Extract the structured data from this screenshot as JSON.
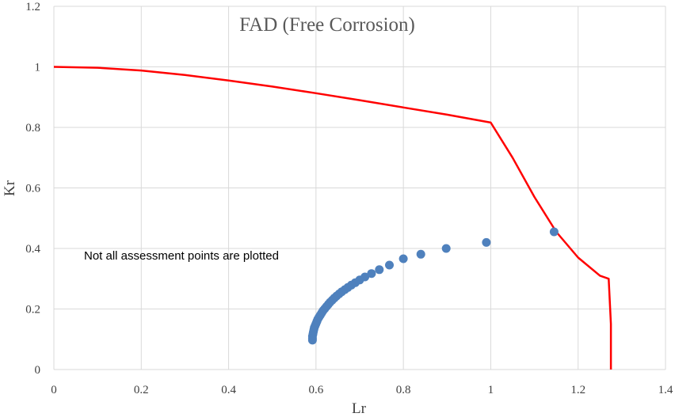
{
  "chart_data": {
    "type": "scatter",
    "title": "FAD (Free Corrosion)",
    "xlabel": "Lr",
    "ylabel": "Kr",
    "xlim": [
      0,
      1.4
    ],
    "ylim": [
      0,
      1.2
    ],
    "x_ticks": [
      0,
      0.2,
      0.4,
      0.6,
      0.8,
      1,
      1.2,
      1.4
    ],
    "x_tick_labels": [
      "0",
      "0.2",
      "0.4",
      "0.6",
      "0.8",
      "1",
      "1.2",
      "1.4"
    ],
    "y_ticks": [
      0,
      0.2,
      0.4,
      0.6,
      0.8,
      1,
      1.2
    ],
    "y_tick_labels": [
      "0",
      "0.2",
      "0.4",
      "0.6",
      "0.8",
      "1",
      "1.2"
    ],
    "grid": true,
    "annotation": "Not all assessment points are plotted",
    "series": [
      {
        "kind": "line",
        "color": "#ff0000",
        "points": [
          [
            0,
            1.0
          ],
          [
            0.1,
            0.997
          ],
          [
            0.2,
            0.988
          ],
          [
            0.3,
            0.973
          ],
          [
            0.4,
            0.955
          ],
          [
            0.5,
            0.935
          ],
          [
            0.6,
            0.913
          ],
          [
            0.7,
            0.89
          ],
          [
            0.8,
            0.866
          ],
          [
            0.9,
            0.842
          ],
          [
            1.0,
            0.816
          ],
          [
            1.05,
            0.7
          ],
          [
            1.1,
            0.57
          ],
          [
            1.15,
            0.455
          ],
          [
            1.2,
            0.37
          ],
          [
            1.25,
            0.31
          ],
          [
            1.27,
            0.3
          ],
          [
            1.275,
            0.15
          ],
          [
            1.275,
            0.0
          ]
        ]
      },
      {
        "kind": "scatter",
        "color": "#4f81bd",
        "points": [
          [
            1.145,
            0.455
          ],
          [
            0.99,
            0.42
          ],
          [
            0.898,
            0.4
          ],
          [
            0.84,
            0.381
          ],
          [
            0.8,
            0.366
          ],
          [
            0.768,
            0.345
          ],
          [
            0.745,
            0.33
          ],
          [
            0.727,
            0.317
          ],
          [
            0.712,
            0.306
          ],
          [
            0.7,
            0.296
          ],
          [
            0.69,
            0.287
          ],
          [
            0.681,
            0.279
          ],
          [
            0.673,
            0.271
          ],
          [
            0.666,
            0.264
          ],
          [
            0.659,
            0.257
          ],
          [
            0.653,
            0.25
          ],
          [
            0.647,
            0.243
          ],
          [
            0.642,
            0.236
          ],
          [
            0.637,
            0.229
          ],
          [
            0.632,
            0.222
          ],
          [
            0.628,
            0.215
          ],
          [
            0.624,
            0.208
          ],
          [
            0.62,
            0.201
          ],
          [
            0.616,
            0.194
          ],
          [
            0.613,
            0.187
          ],
          [
            0.61,
            0.18
          ],
          [
            0.607,
            0.173
          ],
          [
            0.604,
            0.166
          ],
          [
            0.602,
            0.159
          ],
          [
            0.6,
            0.152
          ],
          [
            0.598,
            0.145
          ],
          [
            0.596,
            0.138
          ],
          [
            0.595,
            0.131
          ],
          [
            0.594,
            0.124
          ],
          [
            0.593,
            0.117
          ],
          [
            0.592,
            0.11
          ],
          [
            0.592,
            0.103
          ],
          [
            0.592,
            0.097
          ]
        ]
      }
    ]
  }
}
